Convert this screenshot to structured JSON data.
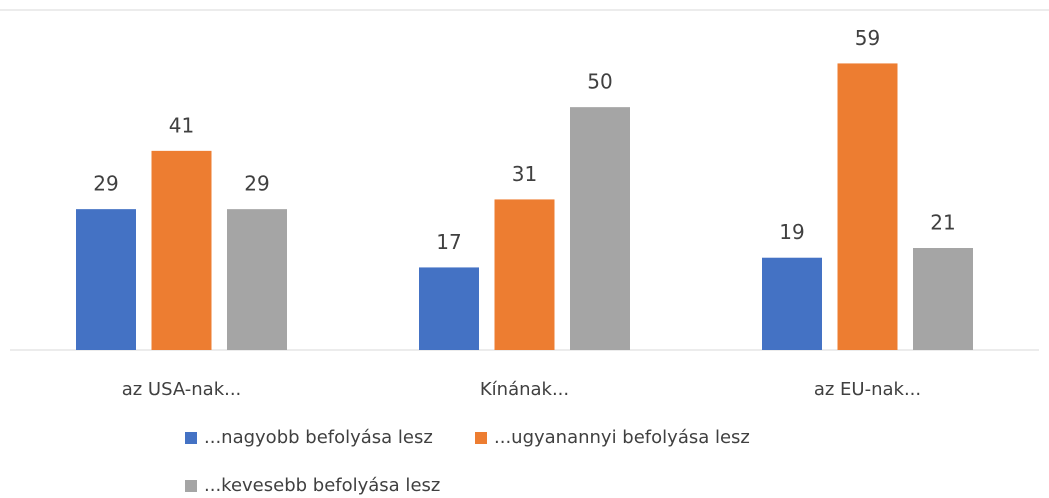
{
  "chart_data": {
    "type": "bar",
    "categories": [
      "az USA-nak...",
      "Kínának...",
      "az EU-nak..."
    ],
    "series": [
      {
        "name": "...nagyobb befolyása lesz",
        "color": "#4472c4",
        "values": [
          29,
          17,
          19
        ]
      },
      {
        "name": "...ugyanannyi befolyása lesz",
        "color": "#ed7d31",
        "values": [
          41,
          31,
          59
        ]
      },
      {
        "name": "...kevesebb befolyása lesz",
        "color": "#a5a5a5",
        "values": [
          29,
          50,
          21
        ]
      }
    ],
    "ylim": [
      0,
      70
    ]
  }
}
